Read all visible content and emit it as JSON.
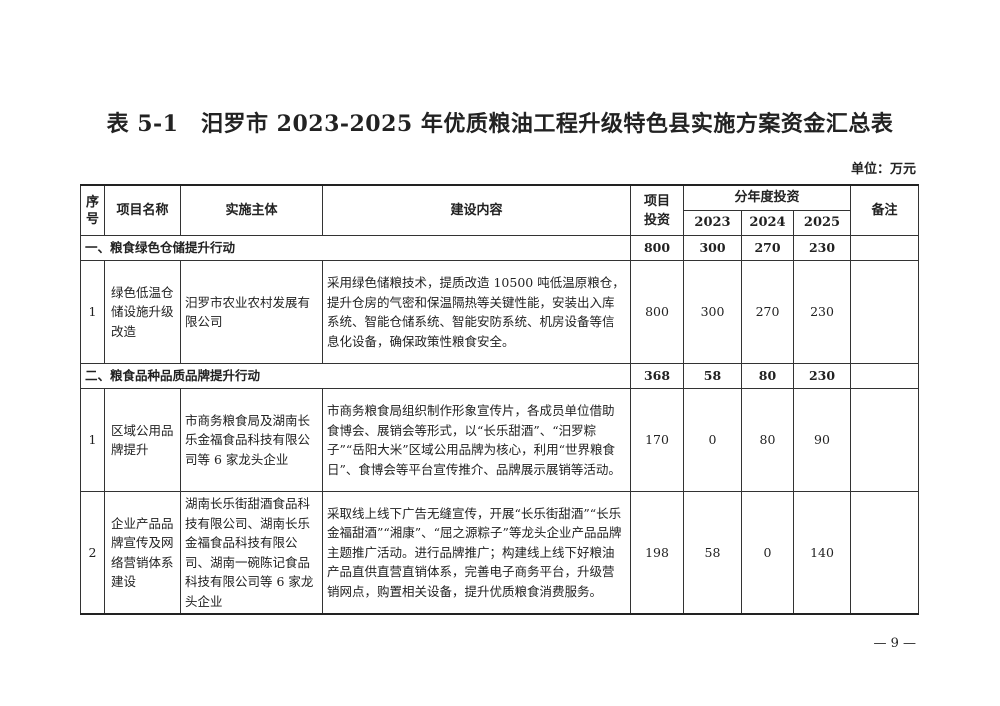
{
  "title": "表 5-1　汨罗市 2023-2025 年优质粮油工程升级特色县实施方案资金汇总表",
  "unit": "单位：万元",
  "headers": {
    "seq": "序号",
    "name": "项目名称",
    "entity": "实施主体",
    "content": "建设内容",
    "invest": "项目投资",
    "yearly": "分年度投资",
    "y2023": "2023",
    "y2024": "2024",
    "y2025": "2025",
    "note": "备注"
  },
  "sections": [
    {
      "title": "一、粮食绿色仓储提升行动",
      "invest": "800",
      "y2023": "300",
      "y2024": "270",
      "y2025": "230",
      "rows": [
        {
          "seq": "1",
          "name": "绿色低温仓储设施升级改造",
          "entity": "汨罗市农业农村发展有限公司",
          "content": "采用绿色储粮技术，提质改造 10500 吨低温原粮仓，提升仓房的气密和保温隔热等关键性能，安装出入库系统、智能仓储系统、智能安防系统、机房设备等信息化设备，确保政策性粮食安全。",
          "invest": "800",
          "y2023": "300",
          "y2024": "270",
          "y2025": "230",
          "note": ""
        }
      ]
    },
    {
      "title": "二、粮食品种品质品牌提升行动",
      "invest": "368",
      "y2023": "58",
      "y2024": "80",
      "y2025": "230",
      "rows": [
        {
          "seq": "1",
          "name": "区域公用品牌提升",
          "entity": "市商务粮食局及湖南长乐金福食品科技有限公司等 6 家龙头企业",
          "content": "市商务粮食局组织制作形象宣传片，各成员单位借助食博会、展销会等形式，以“长乐甜酒”、“汨罗粽子”“岳阳大米”区域公用品牌为核心，利用“世界粮食日”、食博会等平台宣传推介、品牌展示展销等活动。",
          "invest": "170",
          "y2023": "0",
          "y2024": "80",
          "y2025": "90",
          "note": ""
        },
        {
          "seq": "2",
          "name": "企业产品品牌宣传及网络营销体系建设",
          "entity": "湖南长乐街甜酒食品科技有限公司、湖南长乐金福食品科技有限公司、湖南一碗陈记食品科技有限公司等 6 家龙头企业",
          "content": "采取线上线下广告无缝宣传，开展“长乐街甜酒”“长乐金福甜酒”“湘康”、“屈之源粽子”等龙头企业产品品牌主题推广活动。进行品牌推广；构建线上线下好粮油产品直供直营直销体系，完善电子商务平台，升级营销网点，购置相关设备，提升优质粮食消费服务。",
          "invest": "198",
          "y2023": "58",
          "y2024": "0",
          "y2025": "140",
          "note": ""
        }
      ]
    }
  ],
  "page_number": "— 9 —"
}
